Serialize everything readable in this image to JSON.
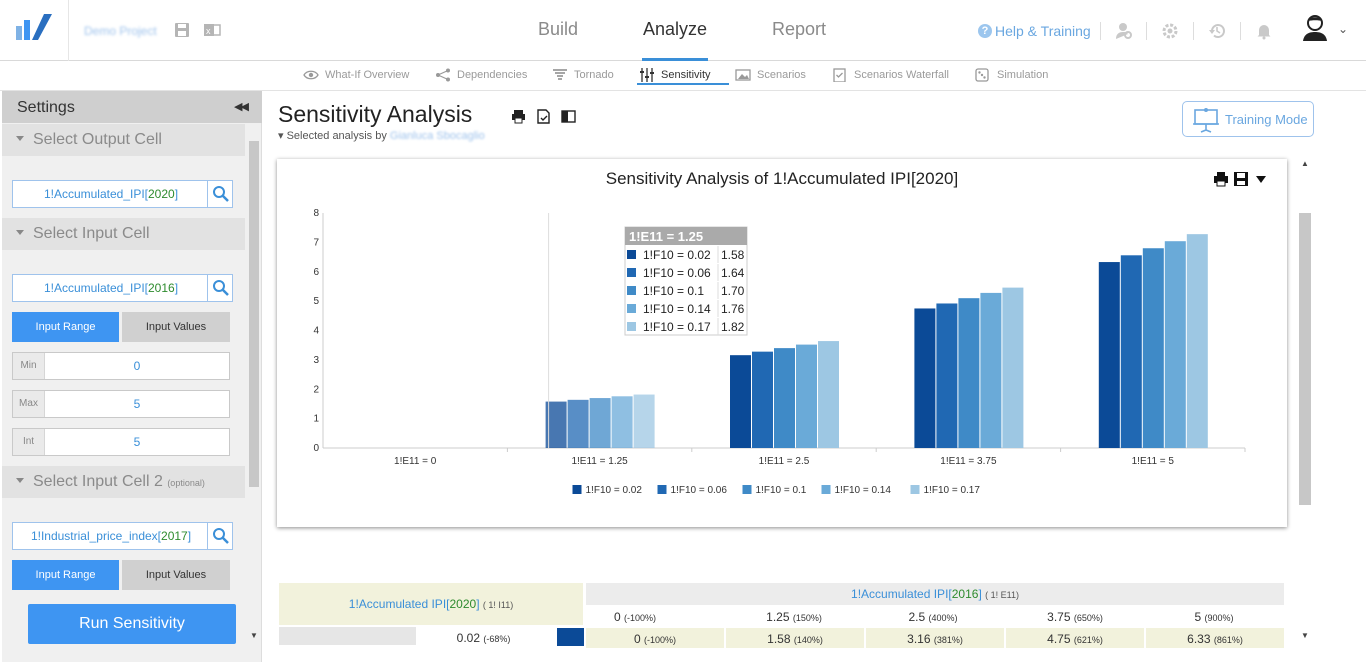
{
  "topbar": {
    "project_name": "Demo Project",
    "tabs": [
      {
        "label": "Build"
      },
      {
        "label": "Analyze"
      },
      {
        "label": "Report"
      }
    ],
    "help_label": "Help & Training",
    "active_tab": "Analyze"
  },
  "subnav": {
    "items": [
      {
        "label": "What-If Overview",
        "icon": "eye-icon"
      },
      {
        "label": "Dependencies",
        "icon": "share-icon"
      },
      {
        "label": "Tornado",
        "icon": "tornado-icon"
      },
      {
        "label": "Sensitivity",
        "icon": "sliders-icon"
      },
      {
        "label": "Scenarios",
        "icon": "image-icon"
      },
      {
        "label": "Scenarios Waterfall",
        "icon": "checklist-icon"
      },
      {
        "label": "Simulation",
        "icon": "dice-icon"
      }
    ],
    "active": "Sensitivity"
  },
  "sidebar": {
    "title": "Settings",
    "output_section": "Select Output Cell",
    "output_cell": {
      "prefix": "1!Accumulated_IPI[",
      "year": "2020",
      "suffix": "]"
    },
    "input_section": "Select Input Cell",
    "input_cell": {
      "prefix": "1!Accumulated_IPI[",
      "year": "2016",
      "suffix": "]"
    },
    "input_range_label": "Input Range",
    "input_values_label": "Input Values",
    "min_label": "Min",
    "min_value": "0",
    "max_label": "Max",
    "max_value": "5",
    "int_label": "Int",
    "int_value": "5",
    "input2_section": "Select Input Cell 2",
    "input2_optional": "(optional)",
    "input2_cell": {
      "prefix": "1!Industrial_price_index[",
      "year": "2017",
      "suffix": "]"
    },
    "input2_range_label": "Input Range",
    "input2_values_label": "Input Values",
    "run_label": "Run Sensitivity"
  },
  "main": {
    "title": "Sensitivity Analysis",
    "selected_by_label": "Selected analysis by",
    "selected_by_name": "Gianluca Sbocaglio",
    "training_label": "Training Mode"
  },
  "chart_data": {
    "type": "bar",
    "title": "Sensitivity Analysis of 1!Accumulated IPI[2020]",
    "categories": [
      "1!E11 = 0",
      "1!E11 = 1.25",
      "1!E11 = 2.5",
      "1!E11 = 3.75",
      "1!E11 = 5"
    ],
    "series": [
      {
        "name": "1!F10 = 0.02",
        "color": "#0b4a97",
        "values": [
          0,
          1.58,
          3.16,
          4.75,
          6.33
        ]
      },
      {
        "name": "1!F10 = 0.06",
        "color": "#2068b3",
        "values": [
          0,
          1.64,
          3.28,
          4.92,
          6.56
        ]
      },
      {
        "name": "1!F10 = 0.1",
        "color": "#3f8ac7",
        "values": [
          0,
          1.7,
          3.4,
          5.1,
          6.8
        ]
      },
      {
        "name": "1!F10 = 0.14",
        "color": "#6aaad8",
        "values": [
          0,
          1.76,
          3.52,
          5.28,
          7.04
        ]
      },
      {
        "name": "1!F10 = 0.17",
        "color": "#9dc7e3",
        "values": [
          0,
          1.82,
          3.64,
          5.46,
          7.28
        ]
      }
    ],
    "ylim": [
      0,
      8
    ],
    "yticks": [
      "0",
      "1",
      "2",
      "3",
      "4",
      "5",
      "6",
      "7",
      "8"
    ],
    "legend": "bottom",
    "tooltip": {
      "header": "1!E11 = 1.25",
      "rows": [
        {
          "label": "1!F10 = 0.02",
          "value": "1.58"
        },
        {
          "label": "1!F10 = 0.06",
          "value": "1.64"
        },
        {
          "label": "1!F10 = 0.1",
          "value": "1.70"
        },
        {
          "label": "1!F10 = 0.14",
          "value": "1.76"
        },
        {
          "label": "1!F10 = 0.17",
          "value": "1.82"
        }
      ]
    }
  },
  "table": {
    "output_prefix": "1!Accumulated IPI[",
    "output_year": "2020",
    "output_suffix": "]",
    "output_ref": "( 1! I11)",
    "input_prefix": "1!Accumulated IPI[",
    "input_year": "2016",
    "input_suffix": "]",
    "input_ref": "( 1! E11)",
    "headers": [
      {
        "value": "0",
        "pct": "(-100%)"
      },
      {
        "value": "1.25",
        "pct": "(150%)"
      },
      {
        "value": "2.5",
        "pct": "(400%)"
      },
      {
        "value": "3.75",
        "pct": "(650%)"
      },
      {
        "value": "5",
        "pct": "(900%)"
      }
    ],
    "row": {
      "label_value": "0.02",
      "label_pct": "(-68%)",
      "cells": [
        {
          "value": "0",
          "pct": "(-100%)"
        },
        {
          "value": "1.58",
          "pct": "(140%)"
        },
        {
          "value": "3.16",
          "pct": "(381%)"
        },
        {
          "value": "4.75",
          "pct": "(621%)"
        },
        {
          "value": "6.33",
          "pct": "(861%)"
        }
      ]
    }
  }
}
